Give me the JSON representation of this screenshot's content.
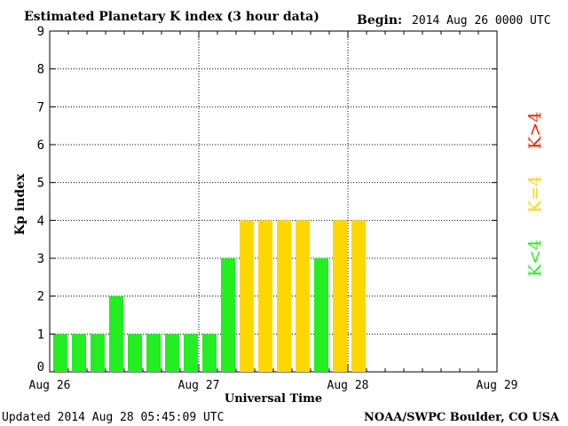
{
  "header": {
    "title": "Estimated Planetary K index (3 hour data)",
    "begin_label": "Begin:",
    "begin_value": "2014 Aug 26 0000 UTC"
  },
  "footer": {
    "updated": "Updated 2014 Aug 28 05:45:09 UTC",
    "source": "NOAA/SWPC Boulder, CO USA"
  },
  "legend": [
    {
      "label": "K<4",
      "color": "#22ee22"
    },
    {
      "label": "K=4",
      "color": "#ffd700"
    },
    {
      "label": "K>4",
      "color": "#ee2200"
    }
  ],
  "chart_data": {
    "type": "bar",
    "ylabel": "Kp index",
    "xlabel": "Universal Time",
    "ylim": [
      0,
      9
    ],
    "yticks": [
      0,
      1,
      2,
      3,
      4,
      5,
      6,
      7,
      8,
      9
    ],
    "x_tick_labels": [
      "Aug 26",
      "Aug 27",
      "Aug 28",
      "Aug 29"
    ],
    "bins_per_day": 8,
    "days": 3,
    "values": [
      1,
      1,
      1,
      2,
      1,
      1,
      1,
      1,
      1,
      3,
      4,
      4,
      4,
      4,
      3,
      4,
      4
    ],
    "grid": "dotted",
    "colors": {
      "low": "#22ee22",
      "equal": "#ffd700",
      "high": "#ee2200"
    }
  }
}
